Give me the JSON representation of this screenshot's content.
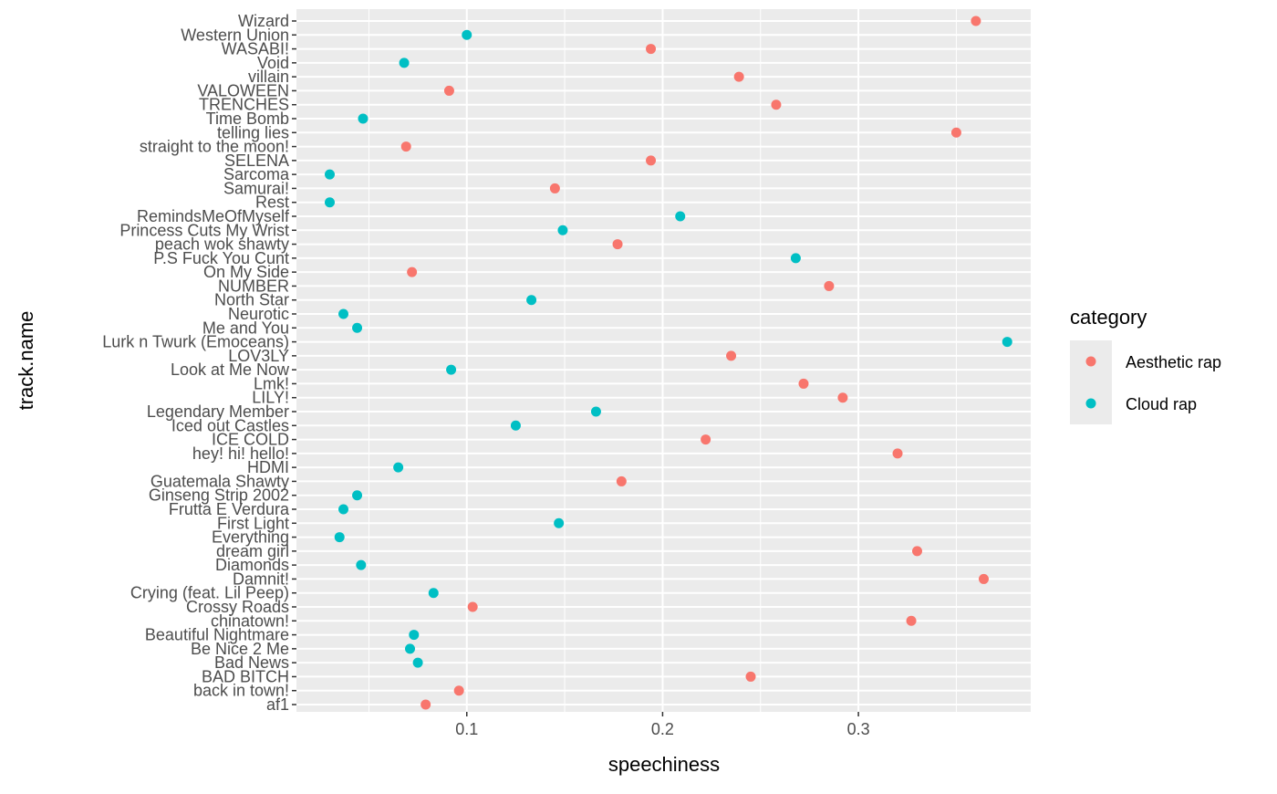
{
  "chart_data": {
    "type": "scatter",
    "xlabel": "speechiness",
    "ylabel": "track.name",
    "xlim": [
      0.013,
      0.388
    ],
    "x_ticks": [
      0.1,
      0.2,
      0.3
    ],
    "x_tick_labels": [
      "0.1",
      "0.2",
      "0.3"
    ],
    "grid": true,
    "legend": {
      "title": "category",
      "placement": "right",
      "entries": [
        {
          "label": "Aesthetic rap",
          "color": "#F8766D"
        },
        {
          "label": "Cloud rap",
          "color": "#00BFC4"
        }
      ]
    },
    "categories": [
      "Wizard",
      "Western Union",
      "WASABI!",
      "Void",
      "villain",
      "VALOWEEN",
      "TRENCHES",
      "Time Bomb",
      "telling lies",
      "straight to the moon!",
      "SELENA",
      "Sarcoma",
      "Samurai!",
      "Rest",
      "RemindsMeOfMyself",
      "Princess Cuts My Wrist",
      "peach wok shawty",
      "P.S Fuck You Cunt",
      "On My Side",
      "NUMBER",
      "North Star",
      "Neurotic",
      "Me and You",
      "Lurk n Twurk (Emoceans)",
      "LOV3LY",
      "Look at Me Now",
      "Lmk!",
      "LILY!",
      "Legendary Member",
      "Iced out Castles",
      "ICE COLD",
      "hey! hi! hello!",
      "HDMI",
      "Guatemala Shawty",
      "Ginseng Strip 2002",
      "Frutta E Verdura",
      "First Light",
      "Everything",
      "dream girl",
      "Diamonds",
      "Damnit!",
      "Crying (feat. Lil Peep)",
      "Crossy Roads",
      "chinatown!",
      "Beautiful Nightmare",
      "Be Nice 2 Me",
      "Bad News",
      "BAD BITCH",
      "back in town!",
      "af1"
    ],
    "points": [
      {
        "track": "Wizard",
        "x": 0.36,
        "category": "Aesthetic rap"
      },
      {
        "track": "Western Union",
        "x": 0.1,
        "category": "Cloud rap"
      },
      {
        "track": "WASABI!",
        "x": 0.194,
        "category": "Aesthetic rap"
      },
      {
        "track": "Void",
        "x": 0.068,
        "category": "Cloud rap"
      },
      {
        "track": "villain",
        "x": 0.239,
        "category": "Aesthetic rap"
      },
      {
        "track": "VALOWEEN",
        "x": 0.091,
        "category": "Aesthetic rap"
      },
      {
        "track": "TRENCHES",
        "x": 0.258,
        "category": "Aesthetic rap"
      },
      {
        "track": "Time Bomb",
        "x": 0.047,
        "category": "Cloud rap"
      },
      {
        "track": "telling lies",
        "x": 0.35,
        "category": "Aesthetic rap"
      },
      {
        "track": "straight to the moon!",
        "x": 0.069,
        "category": "Aesthetic rap"
      },
      {
        "track": "SELENA",
        "x": 0.194,
        "category": "Aesthetic rap"
      },
      {
        "track": "Sarcoma",
        "x": 0.03,
        "category": "Cloud rap"
      },
      {
        "track": "Samurai!",
        "x": 0.145,
        "category": "Aesthetic rap"
      },
      {
        "track": "Rest",
        "x": 0.03,
        "category": "Cloud rap"
      },
      {
        "track": "RemindsMeOfMyself",
        "x": 0.209,
        "category": "Cloud rap"
      },
      {
        "track": "Princess Cuts My Wrist",
        "x": 0.149,
        "category": "Cloud rap"
      },
      {
        "track": "peach wok shawty",
        "x": 0.177,
        "category": "Aesthetic rap"
      },
      {
        "track": "P.S Fuck You Cunt",
        "x": 0.268,
        "category": "Cloud rap"
      },
      {
        "track": "On My Side",
        "x": 0.072,
        "category": "Aesthetic rap"
      },
      {
        "track": "NUMBER",
        "x": 0.285,
        "category": "Aesthetic rap"
      },
      {
        "track": "North Star",
        "x": 0.133,
        "category": "Cloud rap"
      },
      {
        "track": "Neurotic",
        "x": 0.037,
        "category": "Cloud rap"
      },
      {
        "track": "Me and You",
        "x": 0.044,
        "category": "Cloud rap"
      },
      {
        "track": "Lurk n Twurk (Emoceans)",
        "x": 0.376,
        "category": "Cloud rap"
      },
      {
        "track": "LOV3LY",
        "x": 0.235,
        "category": "Aesthetic rap"
      },
      {
        "track": "Look at Me Now",
        "x": 0.092,
        "category": "Cloud rap"
      },
      {
        "track": "Lmk!",
        "x": 0.272,
        "category": "Aesthetic rap"
      },
      {
        "track": "LILY!",
        "x": 0.292,
        "category": "Aesthetic rap"
      },
      {
        "track": "Legendary Member",
        "x": 0.166,
        "category": "Cloud rap"
      },
      {
        "track": "Iced out Castles",
        "x": 0.125,
        "category": "Cloud rap"
      },
      {
        "track": "ICE COLD",
        "x": 0.222,
        "category": "Aesthetic rap"
      },
      {
        "track": "hey! hi! hello!",
        "x": 0.32,
        "category": "Aesthetic rap"
      },
      {
        "track": "HDMI",
        "x": 0.065,
        "category": "Cloud rap"
      },
      {
        "track": "Guatemala Shawty",
        "x": 0.179,
        "category": "Aesthetic rap"
      },
      {
        "track": "Ginseng Strip 2002",
        "x": 0.044,
        "category": "Cloud rap"
      },
      {
        "track": "Frutta E Verdura",
        "x": 0.037,
        "category": "Cloud rap"
      },
      {
        "track": "First Light",
        "x": 0.147,
        "category": "Cloud rap"
      },
      {
        "track": "Everything",
        "x": 0.035,
        "category": "Cloud rap"
      },
      {
        "track": "dream girl",
        "x": 0.33,
        "category": "Aesthetic rap"
      },
      {
        "track": "Diamonds",
        "x": 0.046,
        "category": "Cloud rap"
      },
      {
        "track": "Damnit!",
        "x": 0.364,
        "category": "Aesthetic rap"
      },
      {
        "track": "Crying (feat. Lil Peep)",
        "x": 0.083,
        "category": "Cloud rap"
      },
      {
        "track": "Crossy Roads",
        "x": 0.103,
        "category": "Aesthetic rap"
      },
      {
        "track": "chinatown!",
        "x": 0.327,
        "category": "Aesthetic rap"
      },
      {
        "track": "Beautiful Nightmare",
        "x": 0.073,
        "category": "Cloud rap"
      },
      {
        "track": "Be Nice 2 Me",
        "x": 0.071,
        "category": "Cloud rap"
      },
      {
        "track": "Bad News",
        "x": 0.075,
        "category": "Cloud rap"
      },
      {
        "track": "BAD BITCH",
        "x": 0.245,
        "category": "Aesthetic rap"
      },
      {
        "track": "back in town!",
        "x": 0.096,
        "category": "Aesthetic rap"
      },
      {
        "track": "af1",
        "x": 0.079,
        "category": "Aesthetic rap"
      }
    ]
  }
}
